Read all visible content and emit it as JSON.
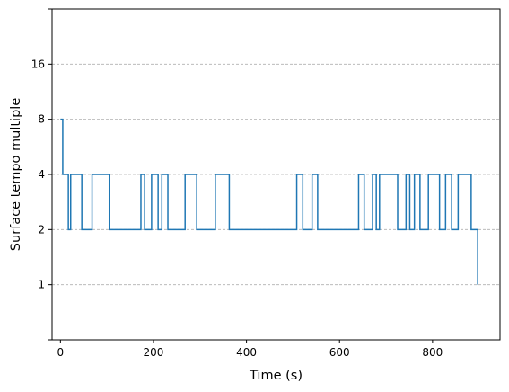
{
  "chart_data": {
    "type": "line",
    "step": true,
    "title": "",
    "xlabel": "Time (s)",
    "ylabel": "Surface tempo multiple",
    "xlim": [
      -18,
      945
    ],
    "xticks": [
      0,
      200,
      400,
      600,
      800
    ],
    "xtick_labels": [
      "0",
      "200",
      "400",
      "600",
      "800"
    ],
    "ylim": [
      0.5,
      32
    ],
    "yscale": "log2",
    "yticks": [
      1,
      2,
      4,
      8,
      16
    ],
    "ytick_labels": [
      "1",
      "2",
      "4",
      "8",
      "16"
    ],
    "grid": "y-dashed",
    "line_color": "#1f77b4",
    "gridline_color": "#b0b0b0",
    "series": [
      {
        "x": [
          0,
          5,
          15,
          17,
          20,
          22,
          43,
          46,
          65,
          68,
          102,
          105,
          170,
          173,
          178,
          181,
          193,
          196,
          207,
          210,
          215,
          218,
          228,
          231,
          265,
          268,
          290,
          293,
          330,
          333,
          360,
          363,
          505,
          508,
          518,
          521,
          538,
          541,
          550,
          553,
          638,
          641,
          650,
          653,
          668,
          671,
          676,
          679,
          683,
          686,
          722,
          725,
          740,
          743,
          748,
          751,
          758,
          761,
          770,
          773,
          788,
          791,
          812,
          815,
          825,
          828,
          838,
          841,
          852,
          855,
          880,
          883,
          893
        ],
        "y": [
          8,
          4,
          4,
          2,
          2,
          4,
          4,
          2,
          2,
          4,
          4,
          2,
          2,
          4,
          4,
          2,
          2,
          4,
          4,
          2,
          2,
          4,
          4,
          2,
          2,
          4,
          4,
          2,
          2,
          4,
          4,
          2,
          2,
          4,
          4,
          2,
          2,
          4,
          4,
          2,
          2,
          4,
          4,
          2,
          2,
          4,
          4,
          2,
          2,
          4,
          4,
          2,
          2,
          4,
          4,
          2,
          2,
          4,
          4,
          2,
          2,
          4,
          4,
          2,
          2,
          4,
          4,
          2,
          2,
          4,
          4,
          2,
          2
        ],
        "end": {
          "x": 897,
          "y": 1
        }
      }
    ]
  }
}
